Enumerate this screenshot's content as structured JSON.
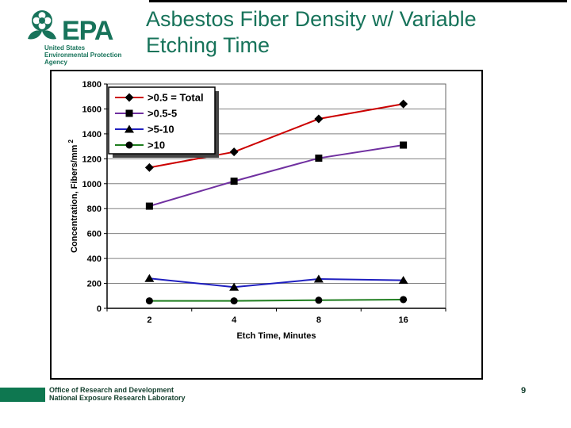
{
  "colors": {
    "accent_green": "#17735a",
    "footer_bar_green": "#0e7750",
    "dark_green_text": "#14402e"
  },
  "logo": {
    "acronym": "EPA",
    "tagline_lines": [
      "United States",
      "Environmental Protection",
      "Agency"
    ]
  },
  "slide": {
    "title_line1": "Asbestos Fiber Density w/ Variable",
    "title_line2": "Etching Time",
    "page_number": "9"
  },
  "footer": {
    "line1": "Office of Research and Development",
    "line2": "National Exposure Research Laboratory"
  },
  "chart_data": {
    "type": "line",
    "title": "",
    "categories": [
      "2",
      "4",
      "8",
      "16"
    ],
    "xlabel": "Etch Time, Minutes",
    "ylabel": "Concentration, Fibers/mm",
    "ylabel_superscript": "2",
    "ylim": [
      0,
      1800
    ],
    "ytick_step": 200,
    "grid": true,
    "legend_position": "top-left-inside",
    "gridline_color": "#808080",
    "marker_color": "#000000",
    "series": [
      {
        "name": ">0.5  = Total",
        "marker": "diamond",
        "color": "#cc0000",
        "values": [
          1130,
          1255,
          1520,
          1640
        ]
      },
      {
        "name": ">0.5-5",
        "marker": "square",
        "color": "#7030a0",
        "values": [
          820,
          1020,
          1205,
          1310
        ]
      },
      {
        "name": ">5-10",
        "marker": "triangle",
        "color": "#1f1fbf",
        "values": [
          240,
          170,
          235,
          225
        ]
      },
      {
        "name": ">10",
        "marker": "circle",
        "color": "#1e7d1e",
        "values": [
          60,
          60,
          65,
          70
        ]
      }
    ]
  }
}
